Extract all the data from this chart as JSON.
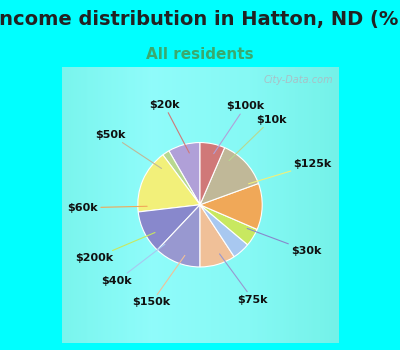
{
  "title": "Income distribution in Hatton, ND (%)",
  "subtitle": "All residents",
  "background_outer": "#00FFFF",
  "background_inner_color": [
    "#d4ede4",
    "#e8f8f0",
    "#f0faf8"
  ],
  "watermark": "City-Data.com",
  "labels": [
    "$100k",
    "$10k",
    "$125k",
    "$30k",
    "$75k",
    "$150k",
    "$40k",
    "$200k",
    "$60k",
    "$50k",
    "$20k"
  ],
  "sizes": [
    9,
    2,
    18,
    12,
    13,
    10,
    5,
    5,
    13,
    14,
    7
  ],
  "colors": [
    "#b0a0d8",
    "#b8d890",
    "#f2f07a",
    "#8888cc",
    "#9898d0",
    "#f0c098",
    "#a8c8f0",
    "#c8e860",
    "#f0a858",
    "#c0b898",
    "#d07878"
  ],
  "startangle": 90,
  "title_fontsize": 14,
  "subtitle_fontsize": 11,
  "label_fontsize": 8
}
